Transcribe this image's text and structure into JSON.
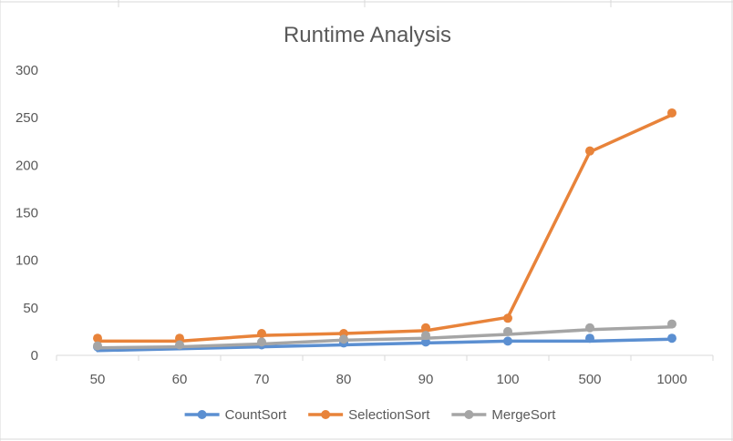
{
  "chart_data": {
    "type": "line",
    "title": "Runtime Analysis",
    "xlabel": "",
    "ylabel": "",
    "categories": [
      "50",
      "60",
      "70",
      "80",
      "90",
      "100",
      "500",
      "1000"
    ],
    "ylim": [
      0,
      300
    ],
    "yticks": [
      0,
      50,
      100,
      150,
      200,
      250,
      300
    ],
    "grid": false,
    "legend_position": "bottom",
    "series": [
      {
        "name": "CountSort",
        "color": "#5b8fd1",
        "line_values": [
          5,
          7,
          9,
          11,
          13,
          15,
          15,
          17
        ],
        "marker_values": [
          9,
          10,
          11,
          13,
          14,
          15,
          18,
          18
        ]
      },
      {
        "name": "SelectionSort",
        "color": "#e8833a",
        "line_values": [
          15,
          15,
          21,
          23,
          26,
          40,
          214,
          253
        ],
        "marker_values": [
          18,
          18,
          23,
          23,
          29,
          39,
          215,
          255
        ]
      },
      {
        "name": "MergeSort",
        "color": "#a5a5a5",
        "line_values": [
          8,
          9,
          12,
          16,
          18,
          22,
          27,
          30
        ],
        "marker_values": [
          10,
          11,
          14,
          17,
          21,
          25,
          29,
          33
        ]
      }
    ]
  }
}
